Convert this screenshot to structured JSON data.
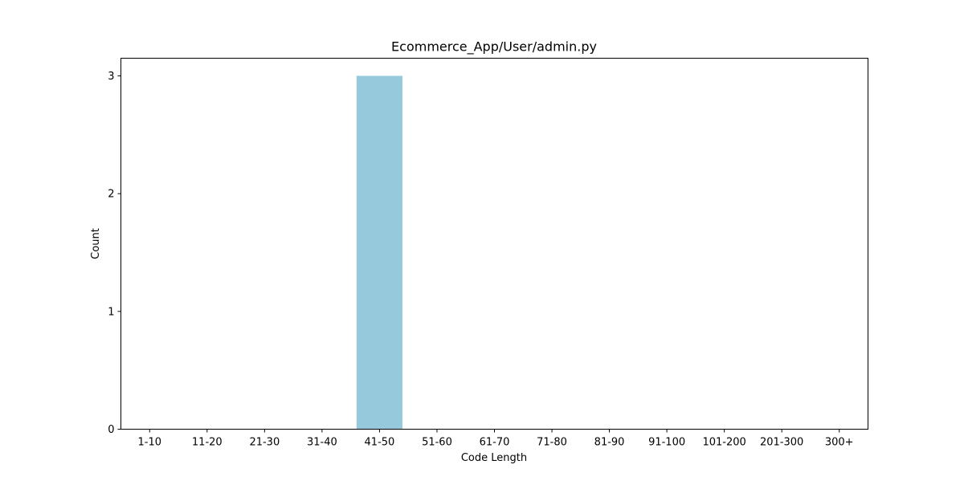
{
  "chart_data": {
    "type": "bar",
    "title": "Ecommerce_App/User/admin.py",
    "xlabel": "Code Length",
    "ylabel": "Count",
    "categories": [
      "1-10",
      "11-20",
      "21-30",
      "31-40",
      "41-50",
      "51-60",
      "61-70",
      "71-80",
      "81-90",
      "91-100",
      "101-200",
      "201-300",
      "300+"
    ],
    "values": [
      0,
      0,
      0,
      0,
      3,
      0,
      0,
      0,
      0,
      0,
      0,
      0,
      0
    ],
    "yticks": [
      0,
      1,
      2,
      3
    ],
    "ylim": [
      0,
      3.15
    ],
    "grid": false,
    "legend": "none",
    "colors": {
      "bar": "#96c9dc",
      "axis": "#000000",
      "background": "#ffffff"
    }
  }
}
